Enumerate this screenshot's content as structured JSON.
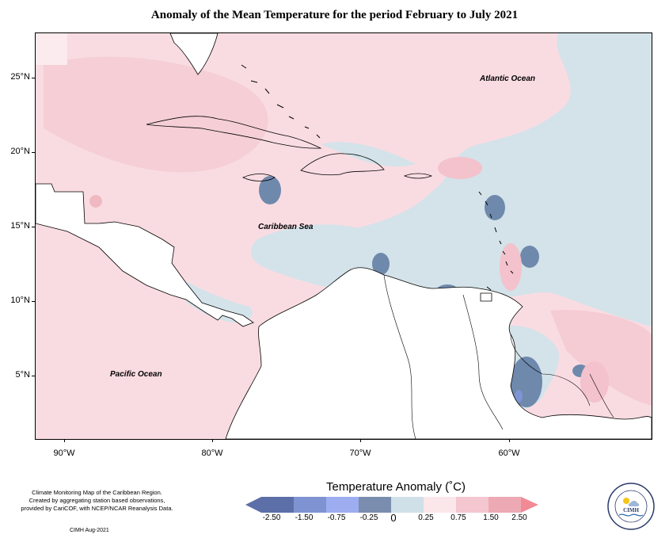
{
  "title": "Anomaly of the Mean Temperature for the period February to July 2021",
  "map": {
    "ocean_labels": {
      "atlantic": "Atlantic Ocean",
      "caribbean": "Caribbean Sea",
      "pacific": "Pacific Ocean"
    },
    "lat_labels": [
      "25°N",
      "20°N",
      "15°N",
      "10°N",
      "5°N"
    ],
    "lon_labels": [
      "90°W",
      "80°W",
      "70°W",
      "60°W"
    ],
    "colors": {
      "warm_light": "#f9dce2",
      "warm_medium": "#f3c2cc",
      "cool_light": "#d3e3e9",
      "cool_medium": "#6f89ad",
      "cool_strong": "#7d95d3",
      "land": "#ffffff"
    }
  },
  "legend": {
    "title": "Temperature Anomaly (˚C)",
    "ticks": [
      "-2.50",
      "-1.50",
      "-0.75",
      "-0.25",
      "0",
      "0.25",
      "0.75",
      "1.50",
      "2.50"
    ],
    "colors": [
      "#5d6fa8",
      "#7f93d2",
      "#9dadef",
      "#7a8dae",
      "#cfe0e8",
      "#fbe7ea",
      "#f4c6cf",
      "#edaab4",
      "#f28a95"
    ]
  },
  "credits": {
    "lines": [
      "Climate Monitoring Map of the Caribbean Region.",
      "Created by aggregating station based observations,",
      "provided by CariCOF, with NCEP/NCAR Reanalysis Data."
    ],
    "date": "CIMH Aug-2021"
  },
  "logo": {
    "text": "CIMH"
  }
}
